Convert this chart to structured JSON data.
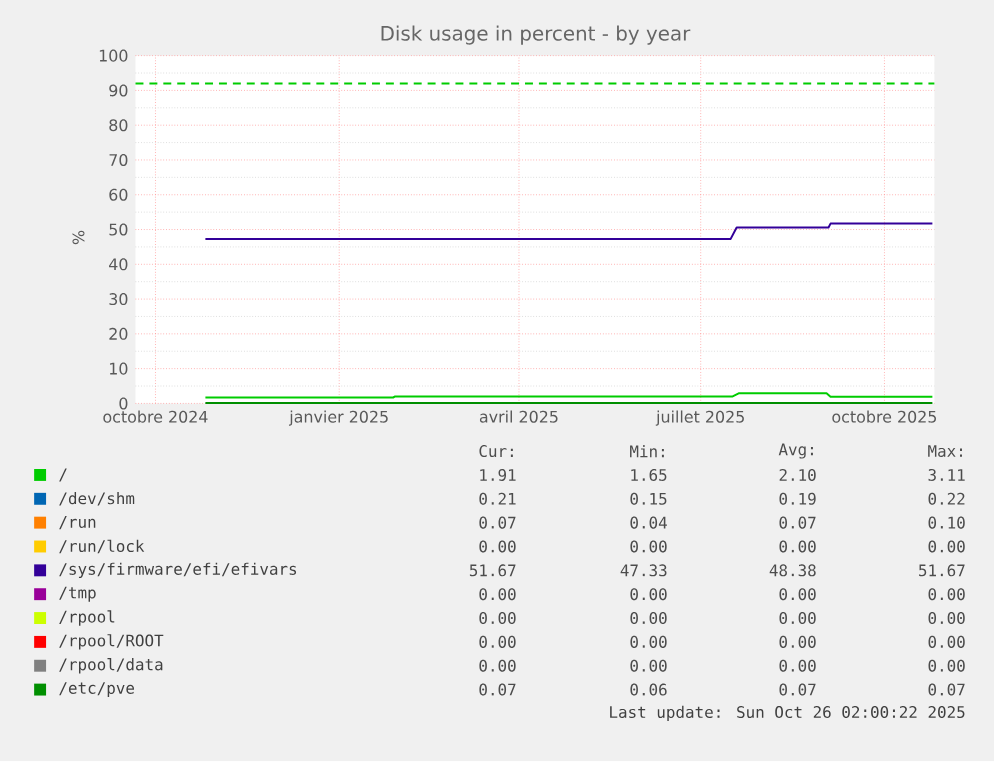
{
  "chart_data": {
    "type": "line",
    "title": "Disk usage in percent - by year",
    "ylabel": "%",
    "xlim": [
      "2024-09-21",
      "2025-10-26"
    ],
    "ylim": [
      0,
      100
    ],
    "xticks": [
      {
        "value": "2024-10-01",
        "label": "octobre 2024"
      },
      {
        "value": "2025-01-01",
        "label": "janvier 2025"
      },
      {
        "value": "2025-04-01",
        "label": "avril 2025"
      },
      {
        "value": "2025-07-01",
        "label": "juillet 2025"
      },
      {
        "value": "2025-10-01",
        "label": "octobre 2025"
      }
    ],
    "yticks": [
      0,
      10,
      20,
      30,
      40,
      50,
      60,
      70,
      80,
      90,
      100
    ],
    "grid": true,
    "legend": "bottom",
    "ref_lines": [
      {
        "axis": "y",
        "value": 92,
        "color": "#00cc00",
        "line_style": "dashed"
      }
    ],
    "series": [
      {
        "name": "/",
        "color": "#00cc00",
        "x": [
          "2024-10-26",
          "2025-01-28",
          "2025-01-29",
          "2025-07-17",
          "2025-07-20",
          "2025-09-02",
          "2025-09-04",
          "2025-10-25"
        ],
        "values": [
          1.7,
          1.7,
          2.0,
          2.0,
          2.9,
          2.9,
          1.9,
          1.9
        ]
      },
      {
        "name": "/dev/shm",
        "color": "#0066b3",
        "values": [
          null
        ]
      },
      {
        "name": "/run",
        "color": "#ff8000",
        "values": [
          null
        ]
      },
      {
        "name": "/run/lock",
        "color": "#ffcc00",
        "values": [
          null
        ]
      },
      {
        "name": "/sys/firmware/efi/efivars",
        "color": "#330099",
        "x": [
          "2024-10-26",
          "2025-07-16",
          "2025-07-19",
          "2025-09-03",
          "2025-09-04",
          "2025-10-25"
        ],
        "values": [
          47.3,
          47.3,
          50.6,
          50.6,
          51.7,
          51.7
        ]
      },
      {
        "name": "/tmp",
        "color": "#990099",
        "values": [
          null
        ]
      },
      {
        "name": "/rpool",
        "color": "#ccff00",
        "values": [
          null
        ]
      },
      {
        "name": "/rpool/ROOT",
        "color": "#ff0000",
        "values": [
          null
        ]
      },
      {
        "name": "/rpool/data",
        "color": "#808080",
        "values": [
          null
        ]
      },
      {
        "name": "/etc/pve",
        "color": "#008f00",
        "x": [
          "2024-10-26",
          "2025-10-25"
        ],
        "values": [
          0.1,
          0.1
        ]
      }
    ],
    "annotations": [
      "Cur:",
      "Min:",
      "Avg:",
      "Max:",
      "1.91",
      "1.65",
      "2.10",
      "3.11",
      "0.21",
      "0.15",
      "0.19",
      "0.22",
      "0.07",
      "0.04",
      "0.07",
      "0.10",
      "0.00",
      "0.00",
      "0.00",
      "0.00",
      "51.67",
      "47.33",
      "48.38",
      "51.67",
      "0.00",
      "0.00",
      "0.00",
      "0.00",
      "0.00",
      "0.00",
      "0.00",
      "0.00",
      "0.00",
      "0.00",
      "0.00",
      "0.00",
      "0.00",
      "0.00",
      "0.00",
      "0.00",
      "0.07",
      "0.06",
      "0.07",
      "0.07",
      "Last update: Sun Oct 26 02:00:22 2025"
    ]
  }
}
